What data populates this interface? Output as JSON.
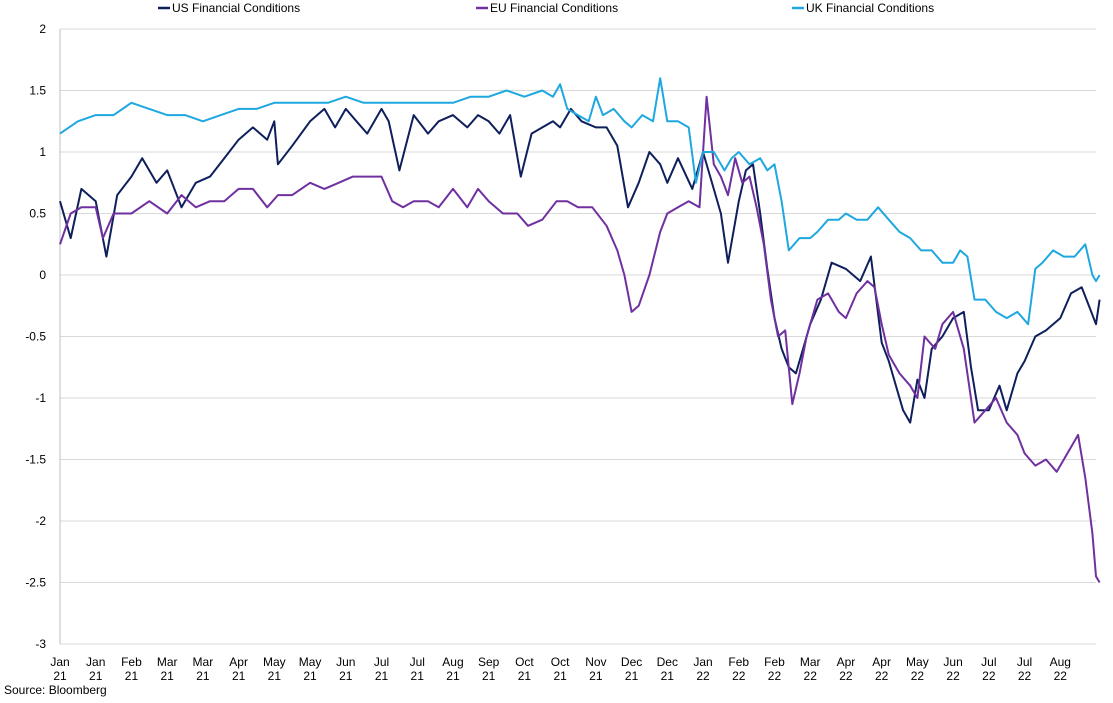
{
  "chart_data": {
    "type": "line",
    "title": "",
    "xlabel": "",
    "ylabel": "",
    "ylim": [
      -3,
      2
    ],
    "yticks": [
      2,
      1.5,
      1,
      0.5,
      0,
      -0.5,
      -1,
      -1.5,
      -2,
      -2.5,
      -3
    ],
    "xlim": [
      0,
      29
    ],
    "grid": true,
    "legend_position": "top",
    "x_tick_labels": [
      [
        "Jan",
        "21"
      ],
      [
        "Jan",
        "21"
      ],
      [
        "Feb",
        "21"
      ],
      [
        "Mar",
        "21"
      ],
      [
        "Mar",
        "21"
      ],
      [
        "Apr",
        "21"
      ],
      [
        "May",
        "21"
      ],
      [
        "May",
        "21"
      ],
      [
        "Jun",
        "21"
      ],
      [
        "Jul",
        "21"
      ],
      [
        "Jul",
        "21"
      ],
      [
        "Aug",
        "21"
      ],
      [
        "Sep",
        "21"
      ],
      [
        "Oct",
        "21"
      ],
      [
        "Oct",
        "21"
      ],
      [
        "Nov",
        "21"
      ],
      [
        "Dec",
        "21"
      ],
      [
        "Dec",
        "21"
      ],
      [
        "Jan",
        "22"
      ],
      [
        "Feb",
        "22"
      ],
      [
        "Feb",
        "22"
      ],
      [
        "Mar",
        "22"
      ],
      [
        "Apr",
        "22"
      ],
      [
        "Apr",
        "22"
      ],
      [
        "May",
        "22"
      ],
      [
        "Jun",
        "22"
      ],
      [
        "Jul",
        "22"
      ],
      [
        "Jul",
        "22"
      ],
      [
        "Aug",
        "22"
      ]
    ],
    "series": [
      {
        "name": "US Financial Conditions",
        "color": "#0f1f5c",
        "points": [
          [
            0,
            0.6
          ],
          [
            0.3,
            0.3
          ],
          [
            0.6,
            0.7
          ],
          [
            1,
            0.6
          ],
          [
            1.3,
            0.15
          ],
          [
            1.6,
            0.65
          ],
          [
            2,
            0.8
          ],
          [
            2.3,
            0.95
          ],
          [
            2.7,
            0.75
          ],
          [
            3,
            0.85
          ],
          [
            3.4,
            0.55
          ],
          [
            3.8,
            0.75
          ],
          [
            4.2,
            0.8
          ],
          [
            4.6,
            0.95
          ],
          [
            5,
            1.1
          ],
          [
            5.4,
            1.2
          ],
          [
            5.8,
            1.1
          ],
          [
            6,
            1.25
          ],
          [
            6.1,
            0.9
          ],
          [
            6.5,
            1.05
          ],
          [
            7,
            1.25
          ],
          [
            7.4,
            1.35
          ],
          [
            7.7,
            1.2
          ],
          [
            8,
            1.35
          ],
          [
            8.3,
            1.25
          ],
          [
            8.6,
            1.15
          ],
          [
            9,
            1.35
          ],
          [
            9.2,
            1.25
          ],
          [
            9.5,
            0.85
          ],
          [
            9.9,
            1.3
          ],
          [
            10.3,
            1.15
          ],
          [
            10.6,
            1.25
          ],
          [
            11,
            1.3
          ],
          [
            11.4,
            1.2
          ],
          [
            11.7,
            1.3
          ],
          [
            12,
            1.25
          ],
          [
            12.3,
            1.15
          ],
          [
            12.6,
            1.3
          ],
          [
            12.9,
            0.8
          ],
          [
            13.2,
            1.15
          ],
          [
            13.5,
            1.2
          ],
          [
            13.8,
            1.25
          ],
          [
            14,
            1.2
          ],
          [
            14.3,
            1.35
          ],
          [
            14.6,
            1.25
          ],
          [
            15,
            1.2
          ],
          [
            15.3,
            1.2
          ],
          [
            15.6,
            1.05
          ],
          [
            15.9,
            0.55
          ],
          [
            16.2,
            0.75
          ],
          [
            16.5,
            1.0
          ],
          [
            16.8,
            0.9
          ],
          [
            17,
            0.75
          ],
          [
            17.3,
            0.95
          ],
          [
            17.7,
            0.7
          ],
          [
            18,
            1.0
          ],
          [
            18.2,
            0.8
          ],
          [
            18.5,
            0.5
          ],
          [
            18.7,
            0.1
          ],
          [
            19,
            0.6
          ],
          [
            19.2,
            0.85
          ],
          [
            19.4,
            0.9
          ],
          [
            19.6,
            0.5
          ],
          [
            19.8,
            0.05
          ],
          [
            20,
            -0.35
          ],
          [
            20.2,
            -0.6
          ],
          [
            20.4,
            -0.75
          ],
          [
            20.6,
            -0.8
          ],
          [
            20.8,
            -0.6
          ],
          [
            21,
            -0.4
          ],
          [
            21.3,
            -0.2
          ],
          [
            21.6,
            0.1
          ],
          [
            22,
            0.05
          ],
          [
            22.4,
            -0.05
          ],
          [
            22.7,
            0.15
          ],
          [
            23,
            -0.55
          ],
          [
            23.2,
            -0.7
          ],
          [
            23.4,
            -0.9
          ],
          [
            23.6,
            -1.1
          ],
          [
            23.8,
            -1.2
          ],
          [
            24,
            -0.85
          ],
          [
            24.2,
            -1.0
          ],
          [
            24.4,
            -0.6
          ],
          [
            24.7,
            -0.5
          ],
          [
            25,
            -0.35
          ],
          [
            25.3,
            -0.3
          ],
          [
            25.5,
            -0.75
          ],
          [
            25.7,
            -1.1
          ],
          [
            26,
            -1.1
          ],
          [
            26.3,
            -0.9
          ],
          [
            26.5,
            -1.1
          ],
          [
            26.8,
            -0.8
          ],
          [
            27,
            -0.7
          ],
          [
            27.3,
            -0.5
          ],
          [
            27.6,
            -0.45
          ],
          [
            28,
            -0.35
          ],
          [
            28.3,
            -0.15
          ],
          [
            28.6,
            -0.1
          ],
          [
            28.8,
            -0.25
          ],
          [
            29,
            -0.4
          ],
          [
            29.1,
            -0.2
          ]
        ]
      },
      {
        "name": "EU Financial Conditions",
        "color": "#7030a0",
        "points": [
          [
            0,
            0.25
          ],
          [
            0.3,
            0.5
          ],
          [
            0.6,
            0.55
          ],
          [
            1,
            0.55
          ],
          [
            1.2,
            0.3
          ],
          [
            1.5,
            0.5
          ],
          [
            2,
            0.5
          ],
          [
            2.5,
            0.6
          ],
          [
            3,
            0.5
          ],
          [
            3.4,
            0.65
          ],
          [
            3.8,
            0.55
          ],
          [
            4.2,
            0.6
          ],
          [
            4.6,
            0.6
          ],
          [
            5,
            0.7
          ],
          [
            5.4,
            0.7
          ],
          [
            5.8,
            0.55
          ],
          [
            6.1,
            0.65
          ],
          [
            6.5,
            0.65
          ],
          [
            7,
            0.75
          ],
          [
            7.4,
            0.7
          ],
          [
            7.8,
            0.75
          ],
          [
            8.2,
            0.8
          ],
          [
            8.6,
            0.8
          ],
          [
            9,
            0.8
          ],
          [
            9.3,
            0.6
          ],
          [
            9.6,
            0.55
          ],
          [
            9.9,
            0.6
          ],
          [
            10.3,
            0.6
          ],
          [
            10.6,
            0.55
          ],
          [
            11,
            0.7
          ],
          [
            11.4,
            0.55
          ],
          [
            11.7,
            0.7
          ],
          [
            12,
            0.6
          ],
          [
            12.4,
            0.5
          ],
          [
            12.8,
            0.5
          ],
          [
            13.1,
            0.4
          ],
          [
            13.5,
            0.45
          ],
          [
            13.9,
            0.6
          ],
          [
            14.2,
            0.6
          ],
          [
            14.5,
            0.55
          ],
          [
            14.9,
            0.55
          ],
          [
            15.3,
            0.4
          ],
          [
            15.6,
            0.2
          ],
          [
            15.8,
            0.0
          ],
          [
            16,
            -0.3
          ],
          [
            16.2,
            -0.25
          ],
          [
            16.5,
            0.0
          ],
          [
            16.8,
            0.35
          ],
          [
            17,
            0.5
          ],
          [
            17.3,
            0.55
          ],
          [
            17.6,
            0.6
          ],
          [
            17.9,
            0.55
          ],
          [
            18.1,
            1.45
          ],
          [
            18.3,
            0.9
          ],
          [
            18.5,
            0.8
          ],
          [
            18.7,
            0.65
          ],
          [
            18.9,
            0.95
          ],
          [
            19.1,
            0.75
          ],
          [
            19.3,
            0.8
          ],
          [
            19.5,
            0.55
          ],
          [
            19.7,
            0.25
          ],
          [
            19.9,
            -0.2
          ],
          [
            20.1,
            -0.5
          ],
          [
            20.3,
            -0.45
          ],
          [
            20.5,
            -1.05
          ],
          [
            20.7,
            -0.8
          ],
          [
            20.9,
            -0.5
          ],
          [
            21.2,
            -0.2
          ],
          [
            21.5,
            -0.15
          ],
          [
            21.8,
            -0.3
          ],
          [
            22,
            -0.35
          ],
          [
            22.3,
            -0.15
          ],
          [
            22.6,
            -0.05
          ],
          [
            22.8,
            -0.1
          ],
          [
            23,
            -0.4
          ],
          [
            23.2,
            -0.65
          ],
          [
            23.5,
            -0.8
          ],
          [
            23.8,
            -0.9
          ],
          [
            24,
            -1.0
          ],
          [
            24.2,
            -0.5
          ],
          [
            24.5,
            -0.6
          ],
          [
            24.7,
            -0.4
          ],
          [
            25,
            -0.3
          ],
          [
            25.3,
            -0.6
          ],
          [
            25.6,
            -1.2
          ],
          [
            25.9,
            -1.1
          ],
          [
            26.2,
            -1.0
          ],
          [
            26.5,
            -1.2
          ],
          [
            26.8,
            -1.3
          ],
          [
            27,
            -1.45
          ],
          [
            27.3,
            -1.55
          ],
          [
            27.6,
            -1.5
          ],
          [
            27.9,
            -1.6
          ],
          [
            28.2,
            -1.45
          ],
          [
            28.5,
            -1.3
          ],
          [
            28.7,
            -1.65
          ],
          [
            28.9,
            -2.1
          ],
          [
            29,
            -2.45
          ],
          [
            29.1,
            -2.5
          ]
        ]
      },
      {
        "name": "UK Financial Conditions",
        "color": "#1fa8e0",
        "points": [
          [
            0,
            1.15
          ],
          [
            0.5,
            1.25
          ],
          [
            1,
            1.3
          ],
          [
            1.5,
            1.3
          ],
          [
            2,
            1.4
          ],
          [
            2.5,
            1.35
          ],
          [
            3,
            1.3
          ],
          [
            3.5,
            1.3
          ],
          [
            4,
            1.25
          ],
          [
            4.5,
            1.3
          ],
          [
            5,
            1.35
          ],
          [
            5.5,
            1.35
          ],
          [
            6,
            1.4
          ],
          [
            6.5,
            1.4
          ],
          [
            7,
            1.4
          ],
          [
            7.5,
            1.4
          ],
          [
            8,
            1.45
          ],
          [
            8.5,
            1.4
          ],
          [
            9,
            1.4
          ],
          [
            9.5,
            1.4
          ],
          [
            10,
            1.4
          ],
          [
            10.5,
            1.4
          ],
          [
            11,
            1.4
          ],
          [
            11.5,
            1.45
          ],
          [
            12,
            1.45
          ],
          [
            12.5,
            1.5
          ],
          [
            13,
            1.45
          ],
          [
            13.5,
            1.5
          ],
          [
            13.8,
            1.45
          ],
          [
            14,
            1.55
          ],
          [
            14.2,
            1.35
          ],
          [
            14.5,
            1.3
          ],
          [
            14.8,
            1.25
          ],
          [
            15,
            1.45
          ],
          [
            15.2,
            1.3
          ],
          [
            15.5,
            1.35
          ],
          [
            15.8,
            1.25
          ],
          [
            16,
            1.2
          ],
          [
            16.3,
            1.3
          ],
          [
            16.6,
            1.25
          ],
          [
            16.8,
            1.6
          ],
          [
            17,
            1.25
          ],
          [
            17.3,
            1.25
          ],
          [
            17.6,
            1.2
          ],
          [
            17.8,
            0.75
          ],
          [
            18,
            1.0
          ],
          [
            18.3,
            1.0
          ],
          [
            18.6,
            0.85
          ],
          [
            18.8,
            0.95
          ],
          [
            19,
            1.0
          ],
          [
            19.3,
            0.9
          ],
          [
            19.6,
            0.95
          ],
          [
            19.8,
            0.85
          ],
          [
            20,
            0.9
          ],
          [
            20.2,
            0.6
          ],
          [
            20.4,
            0.2
          ],
          [
            20.7,
            0.3
          ],
          [
            21,
            0.3
          ],
          [
            21.2,
            0.35
          ],
          [
            21.5,
            0.45
          ],
          [
            21.8,
            0.45
          ],
          [
            22,
            0.5
          ],
          [
            22.3,
            0.45
          ],
          [
            22.6,
            0.45
          ],
          [
            22.9,
            0.55
          ],
          [
            23.2,
            0.45
          ],
          [
            23.5,
            0.35
          ],
          [
            23.8,
            0.3
          ],
          [
            24.1,
            0.2
          ],
          [
            24.4,
            0.2
          ],
          [
            24.7,
            0.1
          ],
          [
            25,
            0.1
          ],
          [
            25.2,
            0.2
          ],
          [
            25.4,
            0.15
          ],
          [
            25.6,
            -0.2
          ],
          [
            25.9,
            -0.2
          ],
          [
            26.2,
            -0.3
          ],
          [
            26.5,
            -0.35
          ],
          [
            26.8,
            -0.3
          ],
          [
            27.1,
            -0.4
          ],
          [
            27.3,
            0.05
          ],
          [
            27.5,
            0.1
          ],
          [
            27.8,
            0.2
          ],
          [
            28.1,
            0.15
          ],
          [
            28.4,
            0.15
          ],
          [
            28.7,
            0.25
          ],
          [
            28.9,
            0.0
          ],
          [
            29,
            -0.05
          ],
          [
            29.1,
            0.0
          ]
        ]
      }
    ]
  },
  "source": "Source: Bloomberg"
}
